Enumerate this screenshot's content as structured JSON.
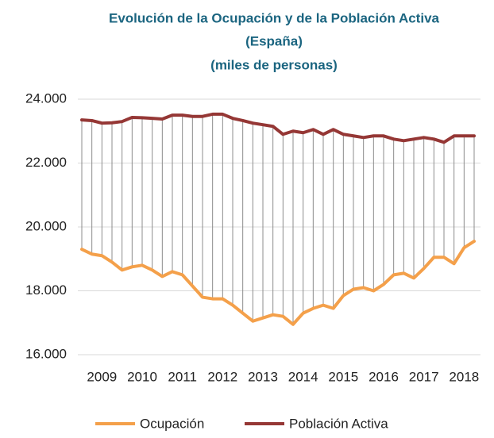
{
  "chart_data": {
    "type": "line",
    "title": "Evolución de la Ocupación y de la Población  Activa",
    "subtitle": [
      "(España)",
      "(miles de personas)"
    ],
    "categories": [
      null,
      null,
      "2009",
      null,
      null,
      null,
      "2010",
      null,
      null,
      null,
      "2011",
      null,
      null,
      null,
      "2012",
      null,
      null,
      null,
      "2013",
      null,
      null,
      null,
      "2014",
      null,
      null,
      null,
      "2015",
      null,
      null,
      null,
      "2016",
      null,
      null,
      null,
      "2017",
      null,
      null,
      null,
      "2018",
      null
    ],
    "series": [
      {
        "name": "Ocupación",
        "color": "#f4a04a",
        "values": [
          19300,
          19150,
          19100,
          18900,
          18650,
          18750,
          18800,
          18650,
          18450,
          18600,
          18500,
          18150,
          17800,
          17750,
          17750,
          17550,
          17300,
          17050,
          17150,
          17250,
          17200,
          16950,
          17300,
          17450,
          17550,
          17450,
          17850,
          18050,
          18100,
          18000,
          18200,
          18500,
          18550,
          18400,
          18700,
          19050,
          19050,
          18850,
          19350,
          19550
        ]
      },
      {
        "name": "Población Activa",
        "color": "#953735",
        "values": [
          23350,
          23330,
          23250,
          23260,
          23300,
          23430,
          23420,
          23400,
          23380,
          23500,
          23500,
          23460,
          23460,
          23530,
          23530,
          23400,
          23330,
          23250,
          23200,
          23150,
          22900,
          23000,
          22950,
          23050,
          22900,
          23050,
          22900,
          22850,
          22800,
          22850,
          22850,
          22750,
          22700,
          22750,
          22800,
          22750,
          22650,
          22850,
          22850,
          22850
        ]
      }
    ],
    "ylim": [
      16000,
      24000
    ],
    "yticks": [
      {
        "value": 16000,
        "label": "16.000"
      },
      {
        "value": 18000,
        "label": "18.000"
      },
      {
        "value": 20000,
        "label": "20.000"
      },
      {
        "value": 22000,
        "label": "22.000"
      },
      {
        "value": 24000,
        "label": "24.000"
      }
    ],
    "grid": true,
    "legend": "bottom"
  }
}
